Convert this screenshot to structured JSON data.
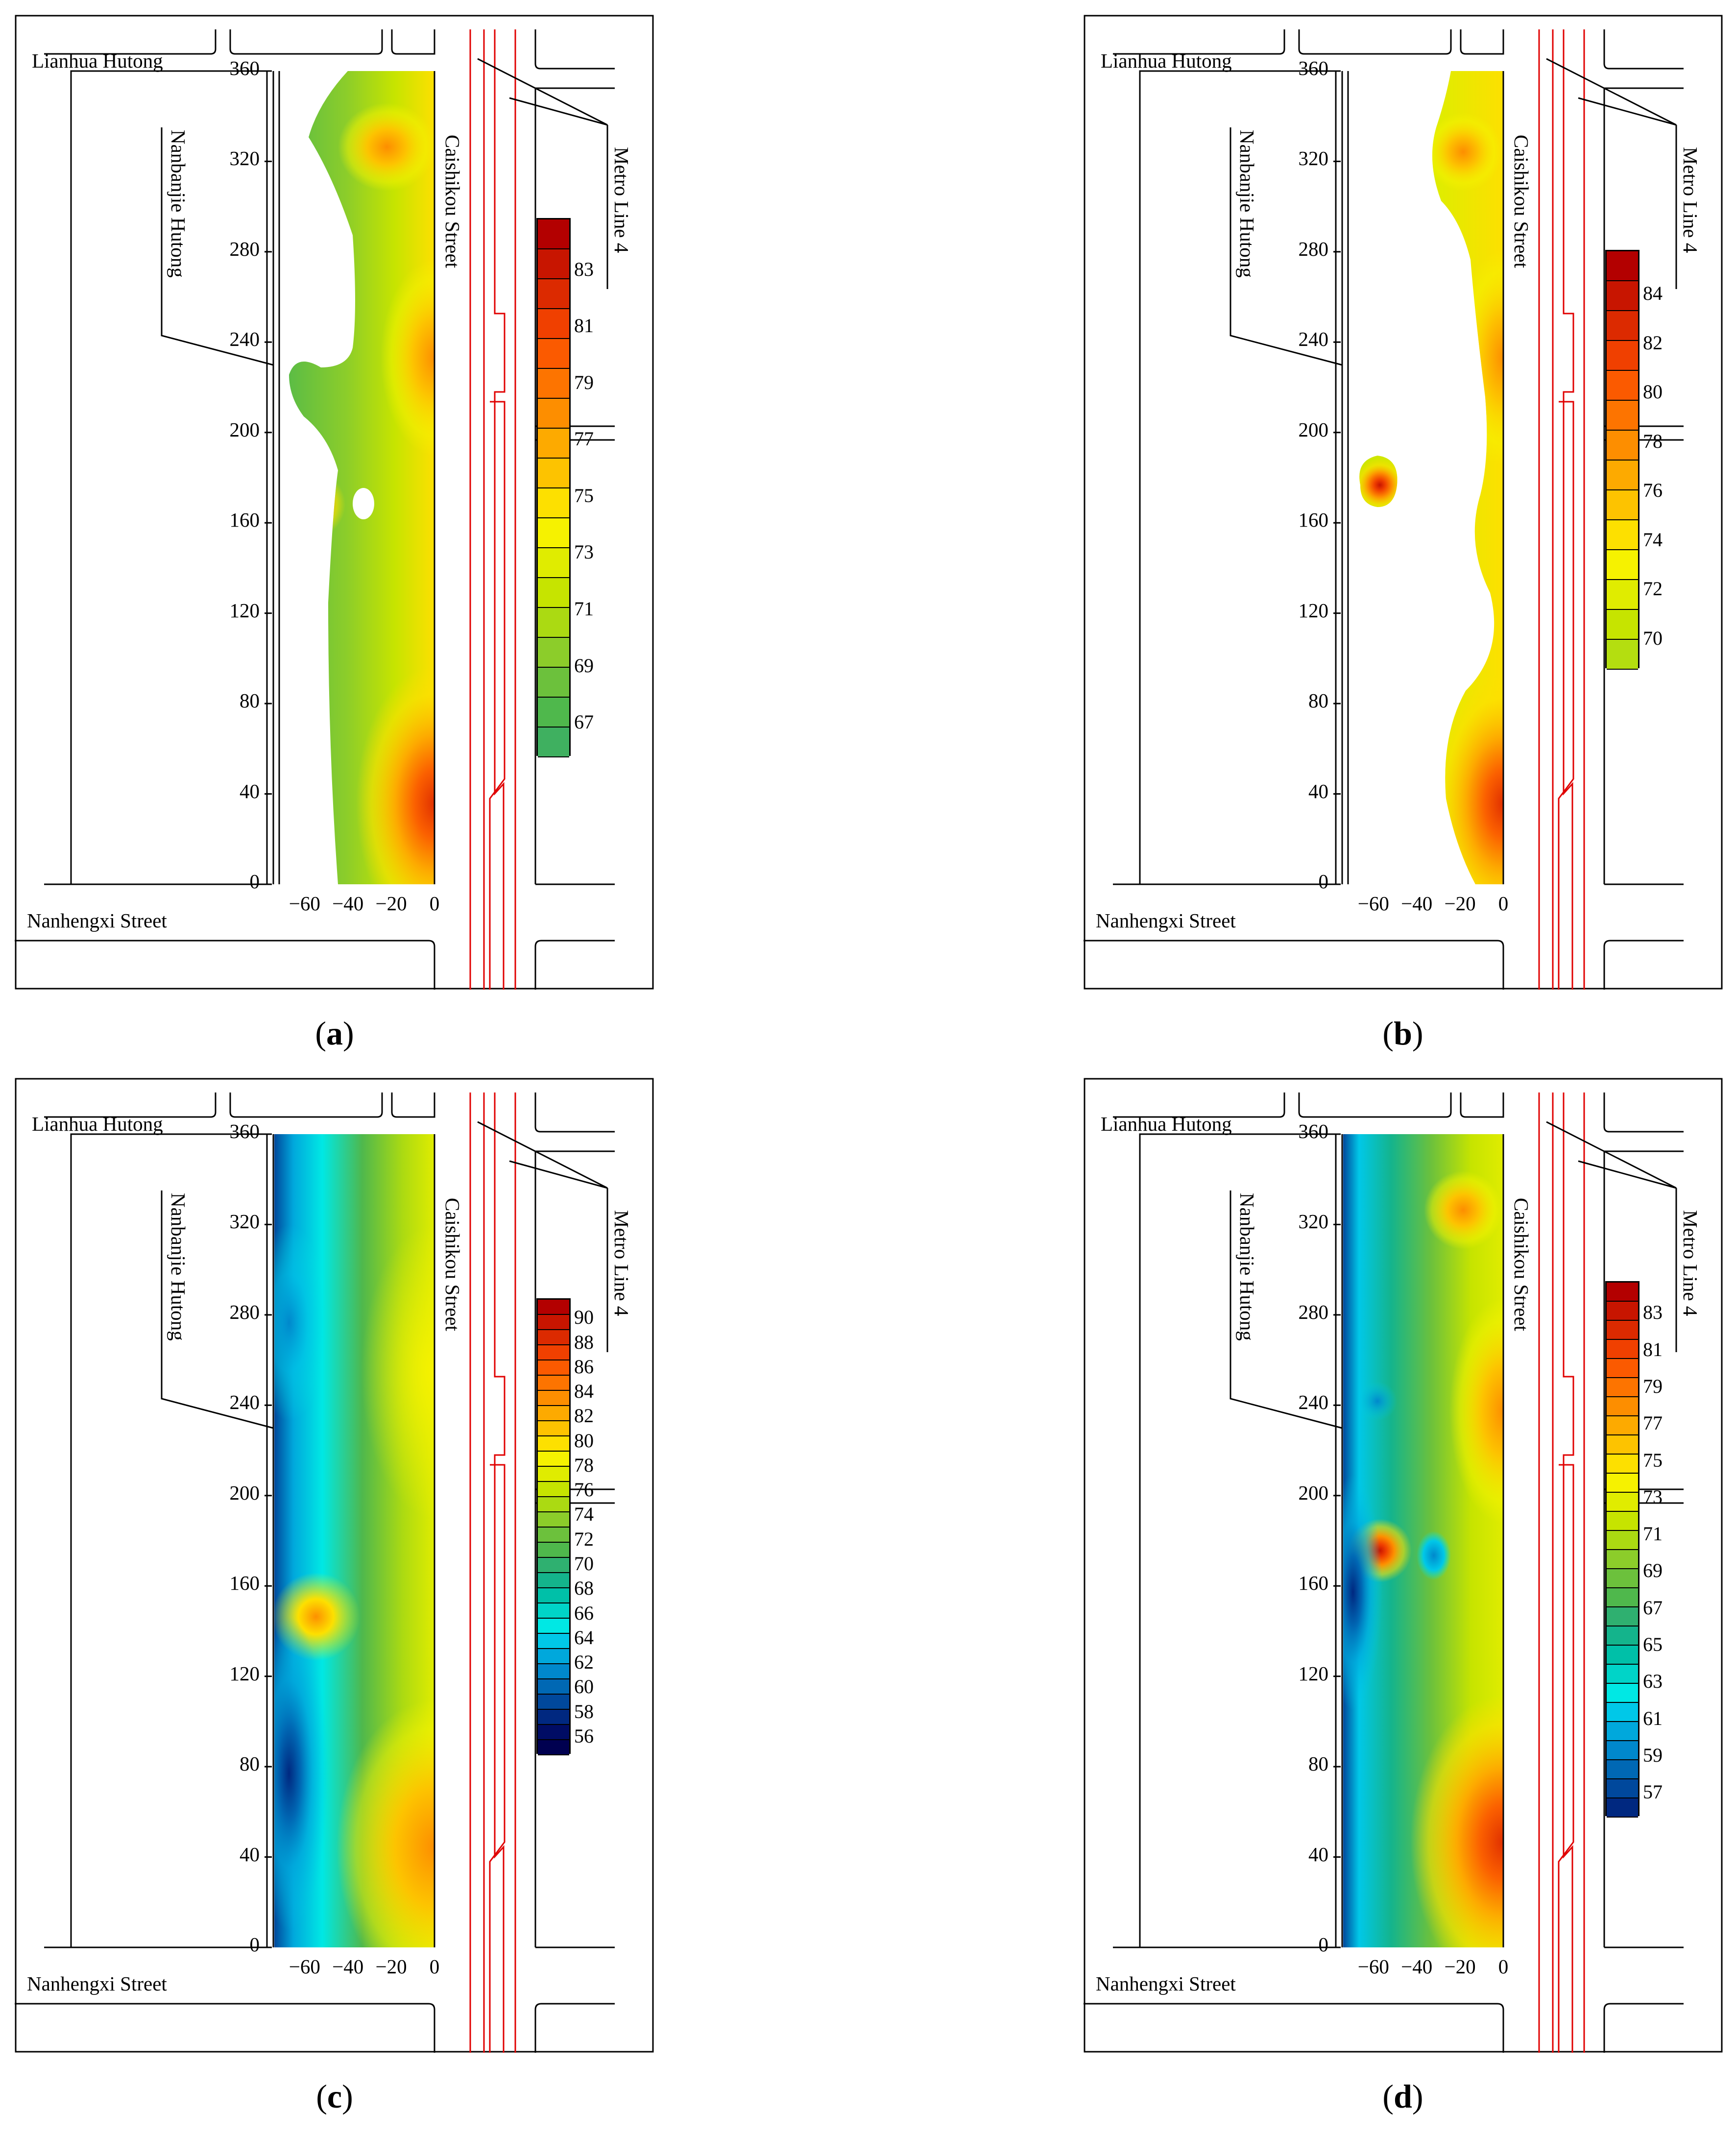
{
  "labels": {
    "north_street": "Lianhua Hutong",
    "south_street": "Nanhengxi Street",
    "west_street": "Nanbanjie Hutong",
    "east_street": "Caishikou Street",
    "metro": "Metro Line 4"
  },
  "axis": {
    "y_ticks": [
      "360",
      "320",
      "280",
      "240",
      "200",
      "160",
      "120",
      "80",
      "40",
      "0"
    ],
    "x_ticks": [
      "−60",
      "−40",
      "−20",
      "0"
    ]
  },
  "panels": [
    {
      "caption_letter": "a",
      "legend_labels": [
        "83",
        "81",
        "79",
        "77",
        "75",
        "73",
        "71",
        "69",
        "67"
      ],
      "legend_colors": [
        "#b30000",
        "#c81500",
        "#dc2a00",
        "#f04000",
        "#fb5a00",
        "#fd7400",
        "#fd8e00",
        "#fdaa00",
        "#fdc300",
        "#fde000",
        "#f6f200",
        "#e0ec00",
        "#c6e400",
        "#abda12",
        "#8ccd2a",
        "#6cc13c",
        "#4fb84c",
        "#3fb060"
      ]
    },
    {
      "caption_letter": "b",
      "legend_labels": [
        "84",
        "82",
        "80",
        "78",
        "76",
        "74",
        "72",
        "70"
      ],
      "legend_colors": [
        "#b30000",
        "#c81500",
        "#dc2a00",
        "#f04000",
        "#fb5a00",
        "#fd7400",
        "#fd8e00",
        "#fdaa00",
        "#fdc300",
        "#fde000",
        "#f6f200",
        "#e0ec00",
        "#c6e400",
        "#b4de10"
      ]
    },
    {
      "caption_letter": "c",
      "legend_labels": [
        "90",
        "88",
        "86",
        "84",
        "82",
        "80",
        "78",
        "76",
        "74",
        "72",
        "70",
        "68",
        "66",
        "64",
        "62",
        "60",
        "58",
        "56"
      ],
      "legend_colors": [
        "#b30000",
        "#c81500",
        "#dc2a00",
        "#f04000",
        "#fb5a00",
        "#fd7400",
        "#fd8e00",
        "#fdaa00",
        "#fdc300",
        "#fde000",
        "#f6f200",
        "#e0ec00",
        "#c6e400",
        "#abda12",
        "#8ccd2a",
        "#6cc13c",
        "#4fb84c",
        "#2fb070",
        "#14b48c",
        "#00c0a8",
        "#00d4c8",
        "#00e8e4",
        "#00c8e8",
        "#00a8dc",
        "#0088cc",
        "#0068b4",
        "#00489c",
        "#002880",
        "#000c64",
        "#000050"
      ]
    },
    {
      "caption_letter": "d",
      "legend_labels": [
        "83",
        "81",
        "79",
        "77",
        "75",
        "73",
        "71",
        "69",
        "67",
        "65",
        "63",
        "61",
        "59",
        "57"
      ],
      "legend_colors": [
        "#b30000",
        "#c81500",
        "#dc2a00",
        "#f04000",
        "#fb5a00",
        "#fd7400",
        "#fd8e00",
        "#fdaa00",
        "#fdc300",
        "#fde000",
        "#f6f200",
        "#e0ec00",
        "#c6e400",
        "#abda12",
        "#8ccd2a",
        "#6cc13c",
        "#4fb84c",
        "#2fb070",
        "#14b48c",
        "#00c0a8",
        "#00d4c8",
        "#00e8e4",
        "#00c8e8",
        "#00a8dc",
        "#0088cc",
        "#0068b4",
        "#00489c",
        "#002880"
      ]
    }
  ]
}
